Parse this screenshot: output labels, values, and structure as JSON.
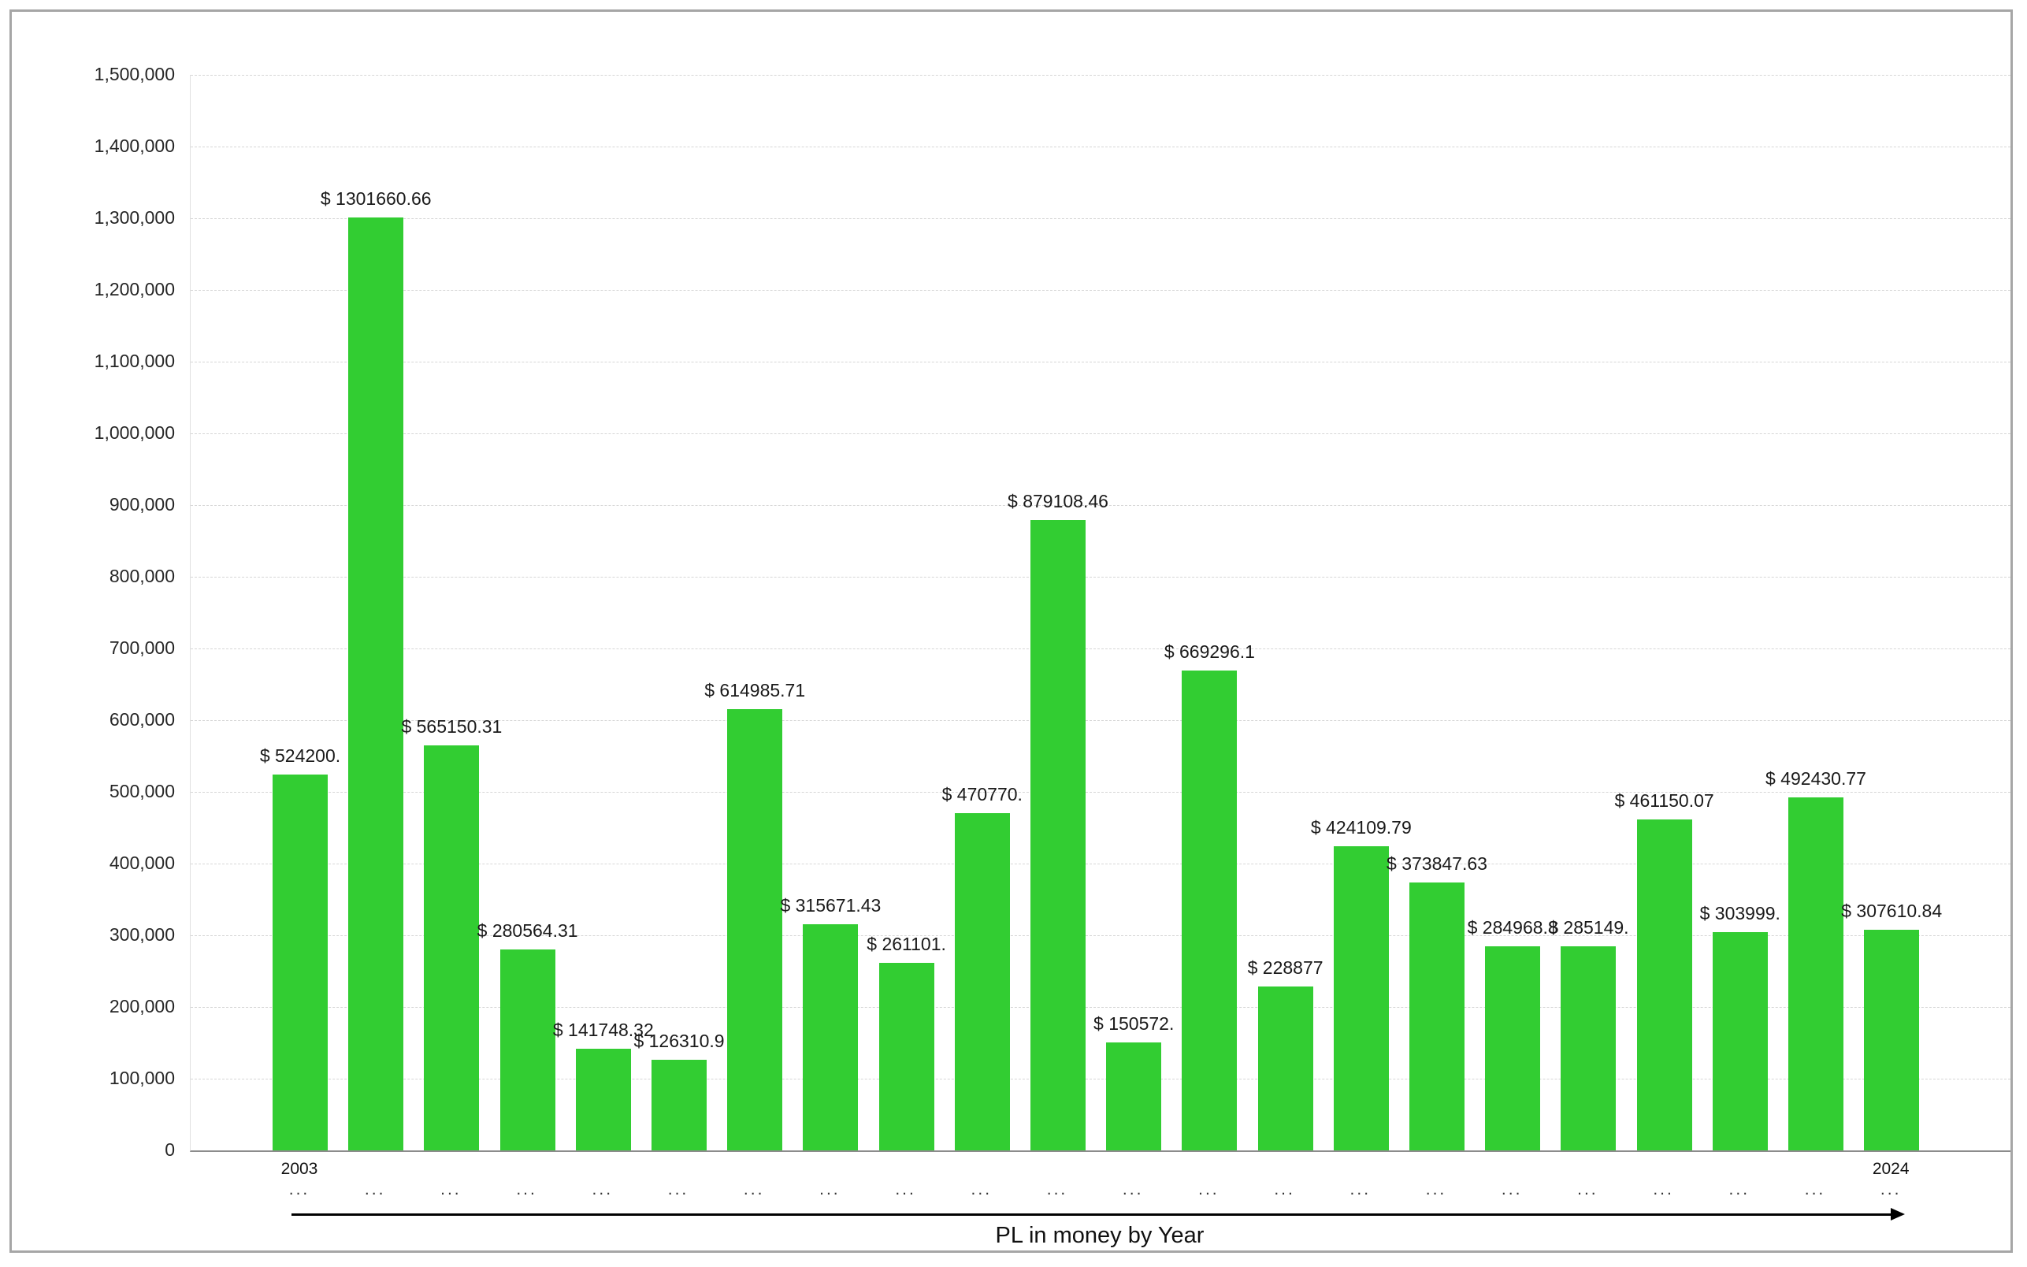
{
  "chart_data": {
    "type": "bar",
    "title": "PL in money by Year",
    "ylim": [
      0,
      1500000
    ],
    "ytick_step": 100000,
    "ytick_labels": [
      "0",
      "100,000",
      "200,000",
      "300,000",
      "400,000",
      "500,000",
      "600,000",
      "700,000",
      "800,000",
      "900,000",
      "1,000,000",
      "1,100,000",
      "1,200,000",
      "1,300,000",
      "1,400,000",
      "1,500,000"
    ],
    "bar_color": "#32CD32",
    "grid": true,
    "legend": "none",
    "x_tick_years": [
      "2003",
      "",
      "",
      "",
      "",
      "",
      "",
      "",
      "",
      "",
      "",
      "",
      "",
      "",
      "",
      "",
      "",
      "",
      "",
      "",
      "",
      "2024"
    ],
    "x_tick_ellipsis": "...",
    "series": [
      {
        "name": "PL in money",
        "values": [
          524200,
          1301660.66,
          565150.31,
          280564.31,
          141748.32,
          126310.9,
          614985.71,
          315671.43,
          261101,
          470770,
          879108.46,
          150572,
          669296.1,
          228877,
          424109.79,
          373847.63,
          284968.8,
          285149,
          461150.07,
          303999,
          492430.77,
          307610.84
        ],
        "labels": [
          "$ 524200.",
          "$ 1301660.66",
          "$ 565150.31",
          "$ 280564.31",
          "$ 141748.32",
          "$ 126310.9",
          "$ 614985.71",
          "$ 315671.43",
          "$ 261101.",
          "$ 470770.",
          "$ 879108.46",
          "$ 150572.",
          "$ 669296.1",
          "$ 228877",
          "$ 424109.79",
          "$ 373847.63",
          "$ 284968.8",
          "$ 285149.",
          "$ 461150.07",
          "$ 303999.",
          "$ 492430.77",
          "$ 307610.84"
        ]
      }
    ]
  }
}
